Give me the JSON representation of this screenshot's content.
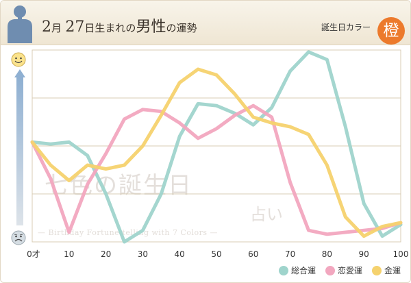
{
  "header": {
    "month": "2",
    "month_unit": "月",
    "day": "27",
    "day_unit": "日生まれの",
    "gender": "男性",
    "suffix": "の運勢",
    "birth_color_label": "誕生日カラー",
    "birth_color_char": "橙",
    "birth_color_hex": "#ec7a2c"
  },
  "watermark": {
    "main": "七色の誕生日",
    "sub": "占い",
    "tag": "— Birthday Fortune-telling with 7 Colors —"
  },
  "chart_data": {
    "type": "line",
    "x_ticks": [
      "0才",
      "10",
      "20",
      "30",
      "40",
      "50",
      "60",
      "70",
      "80",
      "90",
      "100"
    ],
    "x": [
      0,
      5,
      10,
      15,
      20,
      25,
      30,
      35,
      40,
      45,
      50,
      55,
      60,
      65,
      70,
      75,
      80,
      85,
      90,
      95,
      100
    ],
    "xlim": [
      0,
      100
    ],
    "ylim": [
      0,
      100
    ],
    "y_scale_top_icon": "happy-face-icon",
    "y_scale_bottom_icon": "sad-face-icon",
    "grid": true,
    "legend_position": "bottom-right",
    "series": [
      {
        "name": "総合運",
        "color": "#9fd4cc",
        "values": [
          52,
          51,
          52,
          45,
          25,
          0,
          6,
          25,
          55,
          72,
          71,
          67,
          61,
          70,
          89,
          99,
          95,
          60,
          20,
          3,
          9
        ]
      },
      {
        "name": "恋愛運",
        "color": "#f2a7bf",
        "values": [
          52,
          33,
          5,
          30,
          46,
          64,
          69,
          68,
          62,
          54,
          59,
          66,
          71,
          65,
          31,
          6,
          4,
          5,
          6,
          7,
          10
        ]
      },
      {
        "name": "金運",
        "color": "#f5d26e",
        "values": [
          52,
          40,
          32,
          40,
          38,
          40,
          50,
          66,
          83,
          90,
          87,
          77,
          65,
          62,
          60,
          56,
          40,
          13,
          3,
          8,
          10
        ]
      }
    ]
  }
}
